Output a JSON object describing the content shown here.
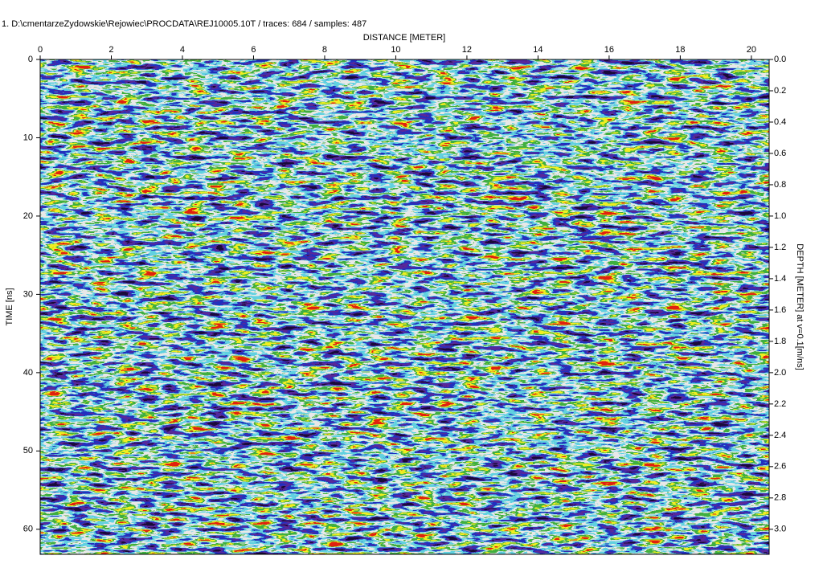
{
  "chart_data": {
    "type": "radargram",
    "title": "1. D:\\cmentarzeZydowskie\\Rejowiec\\PROCDATA\\REJ10005.10T / traces: 684 / samples: 487",
    "x_label": "DISTANCE [METER]",
    "y_label": "TIME [ns]",
    "y2_label": "DEPTH [METER] at v=0.1[m/ns]",
    "xlim": [
      0,
      20.5
    ],
    "xticks": [
      0,
      2,
      4,
      6,
      8,
      10,
      12,
      14,
      16,
      18,
      20
    ],
    "ylim": [
      0,
      63.2
    ],
    "yticks": [
      0,
      10,
      20,
      30,
      40,
      50,
      60
    ],
    "y2lim": [
      0,
      3.16
    ],
    "y2ticks": [
      {
        "value": 0,
        "label": "0.0"
      },
      0.2,
      0.4,
      0.6,
      0.8,
      {
        "value": 1,
        "label": "1.0"
      },
      1.2,
      1.4,
      1.6,
      1.8,
      {
        "value": 2,
        "label": "2.0"
      },
      2.2,
      2.4,
      2.6,
      2.8,
      {
        "value": 3,
        "label": "3.0"
      }
    ]
  }
}
